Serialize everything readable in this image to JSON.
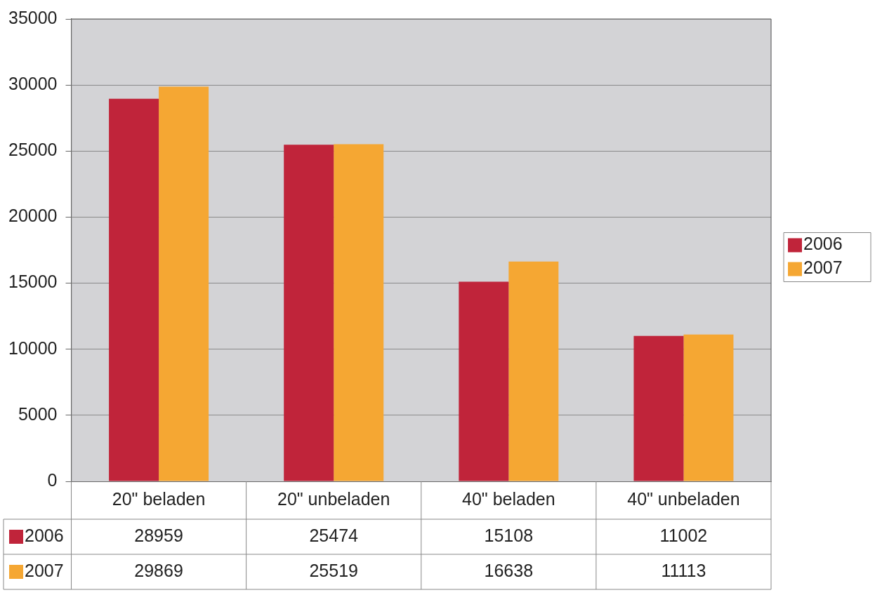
{
  "chart_data": {
    "type": "bar",
    "categories": [
      "20\" beladen",
      "20\" unbeladen",
      "40\" beladen",
      "40\" unbeladen"
    ],
    "series": [
      {
        "name": "2006",
        "color": "#c0243a",
        "values": [
          28959,
          25474,
          15108,
          11002
        ]
      },
      {
        "name": "2007",
        "color": "#f5a733",
        "values": [
          29869,
          25519,
          16638,
          11113
        ]
      }
    ],
    "ylim": [
      0,
      35000
    ],
    "yticks": [
      0,
      5000,
      10000,
      15000,
      20000,
      25000,
      30000,
      35000
    ],
    "grid": "y",
    "legend": "right",
    "data_labels": true
  }
}
